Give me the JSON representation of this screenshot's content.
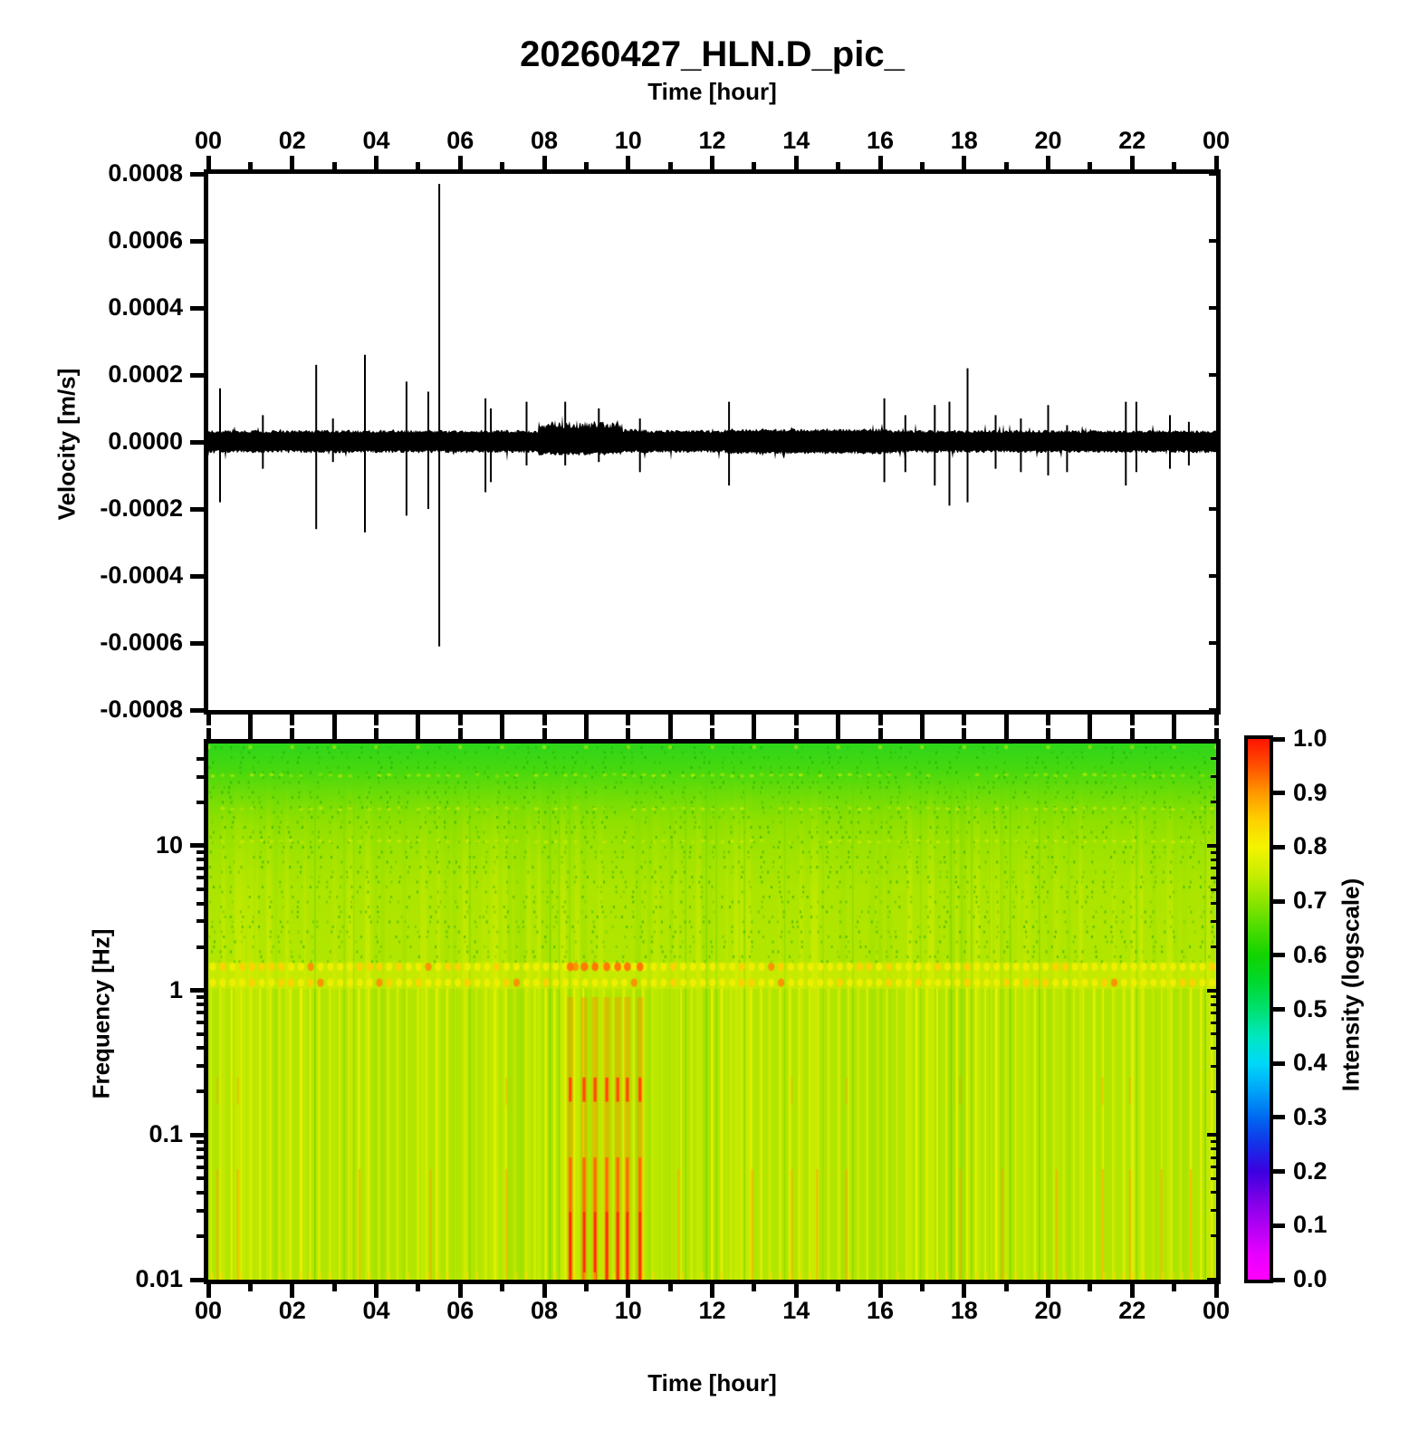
{
  "title": "20260427_HLN.D_pic_",
  "axes": {
    "top_time": {
      "label": "Time [hour]",
      "tick_hours": [
        0,
        2,
        4,
        6,
        8,
        10,
        12,
        14,
        16,
        18,
        20,
        22,
        24
      ],
      "tick_labels": [
        "00",
        "02",
        "04",
        "06",
        "08",
        "10",
        "12",
        "14",
        "16",
        "18",
        "20",
        "22",
        "00"
      ]
    },
    "bottom_time": {
      "label": "Time [hour]",
      "tick_hours": [
        0,
        2,
        4,
        6,
        8,
        10,
        12,
        14,
        16,
        18,
        20,
        22,
        24
      ],
      "tick_labels": [
        "00",
        "02",
        "04",
        "06",
        "08",
        "10",
        "12",
        "14",
        "16",
        "18",
        "20",
        "22",
        "00"
      ]
    },
    "velocity": {
      "label": "Velocity [m/s]",
      "tick_values": [
        0.0008,
        0.0006,
        0.0004,
        0.0002,
        0.0,
        -0.0002,
        -0.0004,
        -0.0006,
        -0.0008
      ],
      "tick_labels": [
        "0.0008",
        "0.0006",
        "0.0004",
        "0.0002",
        "0.0000",
        "-0.0002",
        "-0.0004",
        "-0.0006",
        "-0.0008"
      ]
    },
    "frequency": {
      "label": "Frequency [Hz]",
      "tick_values": [
        10,
        1,
        0.1,
        0.01
      ],
      "tick_labels": [
        "10",
        "1",
        "0.1",
        "0.01"
      ],
      "minor_tick_values": [
        50,
        40,
        30,
        20,
        9,
        8,
        7,
        6,
        5,
        4,
        3,
        2,
        0.9,
        0.8,
        0.7,
        0.6,
        0.5,
        0.4,
        0.3,
        0.2,
        0.09,
        0.08,
        0.07,
        0.06,
        0.05,
        0.04,
        0.03,
        0.02
      ]
    },
    "colorbar": {
      "label": "Intensity (logscale)",
      "tick_labels": [
        "1.0",
        "0.9",
        "0.8",
        "0.7",
        "0.6",
        "0.5",
        "0.4",
        "0.3",
        "0.2",
        "0.1",
        "0.0"
      ],
      "gradient_stops": [
        {
          "v": 0.0,
          "c": "#ff00ff"
        },
        {
          "v": 0.05,
          "c": "#e400ff"
        },
        {
          "v": 0.1,
          "c": "#b000f2"
        },
        {
          "v": 0.15,
          "c": "#7a00e8"
        },
        {
          "v": 0.2,
          "c": "#3c00e0"
        },
        {
          "v": 0.25,
          "c": "#1430e8"
        },
        {
          "v": 0.3,
          "c": "#0068f0"
        },
        {
          "v": 0.35,
          "c": "#00a4f8"
        },
        {
          "v": 0.4,
          "c": "#00d8f8"
        },
        {
          "v": 0.45,
          "c": "#00e8c0"
        },
        {
          "v": 0.5,
          "c": "#00e070"
        },
        {
          "v": 0.55,
          "c": "#00d830"
        },
        {
          "v": 0.6,
          "c": "#12d400"
        },
        {
          "v": 0.65,
          "c": "#4cdc00"
        },
        {
          "v": 0.7,
          "c": "#8ee400"
        },
        {
          "v": 0.75,
          "c": "#c8ee00"
        },
        {
          "v": 0.8,
          "c": "#f4f400"
        },
        {
          "v": 0.85,
          "c": "#ffd000"
        },
        {
          "v": 0.9,
          "c": "#ff9800"
        },
        {
          "v": 0.95,
          "c": "#ff5000"
        },
        {
          "v": 1.0,
          "c": "#ff1400"
        }
      ]
    }
  },
  "chart_data": [
    {
      "type": "line",
      "title": "20260427_HLN.D_pic_",
      "xlabel": "Time [hour]",
      "ylabel": "Velocity [m/s]",
      "xlim": [
        0,
        24
      ],
      "ylim": [
        -0.0008,
        0.0008
      ],
      "x_major_tick_step_hours": 2,
      "x_minor_tick_step_hours": 1,
      "baseline_noise_amp": 3e-05,
      "noise_burst": {
        "start_hour": 7.85,
        "end_hour": 9.85,
        "amp_pos": 5e-05,
        "amp_neg": 3.5e-05,
        "tail_end_hour": 10.45
      },
      "spikes": [
        {
          "t": 0.28,
          "up": 0.00016,
          "down": -0.00018
        },
        {
          "t": 1.3,
          "up": 8e-05,
          "down": -8e-05
        },
        {
          "t": 2.57,
          "up": 0.00023,
          "down": -0.00026
        },
        {
          "t": 2.97,
          "up": 7e-05,
          "down": -6e-05
        },
        {
          "t": 3.73,
          "up": 0.00026,
          "down": -0.00027
        },
        {
          "t": 4.72,
          "up": 0.00018,
          "down": -0.00022
        },
        {
          "t": 5.24,
          "up": 0.00015,
          "down": -0.0002
        },
        {
          "t": 5.5,
          "up": 0.00077,
          "down": -0.00061
        },
        {
          "t": 6.6,
          "up": 0.00013,
          "down": -0.00015
        },
        {
          "t": 6.73,
          "up": 0.0001,
          "down": -0.00012
        },
        {
          "t": 7.58,
          "up": 0.00012,
          "down": -7e-05
        },
        {
          "t": 8.5,
          "up": 0.00012,
          "down": -7e-05
        },
        {
          "t": 9.3,
          "up": 0.0001,
          "down": -6e-05
        },
        {
          "t": 10.28,
          "up": 7e-05,
          "down": -9e-05
        },
        {
          "t": 12.4,
          "up": 0.00012,
          "down": -0.00013
        },
        {
          "t": 16.1,
          "up": 0.00013,
          "down": -0.00012
        },
        {
          "t": 16.6,
          "up": 8e-05,
          "down": -9e-05
        },
        {
          "t": 17.3,
          "up": 0.00011,
          "down": -0.00013
        },
        {
          "t": 17.65,
          "up": 0.00012,
          "down": -0.00019
        },
        {
          "t": 18.08,
          "up": 0.00022,
          "down": -0.00018
        },
        {
          "t": 18.75,
          "up": 8e-05,
          "down": -8e-05
        },
        {
          "t": 19.35,
          "up": 7e-05,
          "down": -9e-05
        },
        {
          "t": 20.0,
          "up": 0.00011,
          "down": -0.0001
        },
        {
          "t": 20.45,
          "up": 5e-05,
          "down": -9e-05
        },
        {
          "t": 21.85,
          "up": 0.00012,
          "down": -0.00013
        },
        {
          "t": 22.1,
          "up": 0.00012,
          "down": -9e-05
        },
        {
          "t": 22.9,
          "up": 8e-05,
          "down": -8e-05
        },
        {
          "t": 23.35,
          "up": 6e-05,
          "down": -7e-05
        }
      ]
    },
    {
      "type": "heatmap",
      "xlabel": "Time [hour]",
      "ylabel": "Frequency [Hz]",
      "xlim": [
        0,
        24
      ],
      "ylim_hz": [
        0.01,
        51
      ],
      "yscale": "log",
      "intensity_label": "Intensity (logscale)",
      "intensity_range": [
        0.0,
        1.0
      ],
      "base_intensity": 0.73,
      "base_color": "#b2e600",
      "features": {
        "high_freq_green_zone": {
          "freq_above_hz": 2,
          "intensity": 0.62
        },
        "top_green_gradient": {
          "freq_above_hz": 20,
          "intensity": 0.55
        },
        "yellow_dotted_band": {
          "freq_hz": [
            1.1,
            1.5
          ],
          "intensity": 0.82,
          "dot_period_min": 14
        },
        "column_stripe_period_min": 14,
        "strong_red_streak_hours": [
          8.62,
          8.95,
          9.21,
          9.49,
          9.75,
          9.98,
          10.28
        ],
        "strong_red_streak_freq_below_hz": 0.07,
        "red_dash_freq_hz": [
          0.17,
          0.25
        ],
        "weak_orange_streak_hours": [
          0.22,
          0.7,
          3.6,
          5.3,
          7.1,
          11.2,
          12.95,
          13.9,
          14.5,
          15.2,
          17.9,
          18.9,
          20.2,
          21.3,
          21.95,
          22.7,
          23.4
        ]
      }
    }
  ]
}
